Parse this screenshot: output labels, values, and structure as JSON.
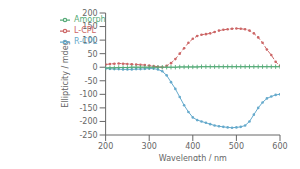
{
  "chart_data": {
    "type": "line",
    "xlabel": "Wavelength / nm",
    "ylabel": "Ellipticity / mdeg",
    "x": [
      200,
      210,
      220,
      230,
      240,
      250,
      260,
      270,
      280,
      290,
      300,
      310,
      320,
      330,
      340,
      350,
      360,
      370,
      380,
      390,
      400,
      410,
      420,
      430,
      440,
      450,
      460,
      470,
      480,
      490,
      500,
      510,
      520,
      530,
      540,
      550,
      560,
      570,
      580,
      590,
      600
    ],
    "xlim": [
      200,
      600
    ],
    "ylim": [
      -250,
      200
    ],
    "xticks": [
      200,
      300,
      400,
      500,
      600
    ],
    "yticks": [
      -250,
      -200,
      -150,
      -100,
      -50,
      0,
      50,
      100,
      150,
      200
    ],
    "legend": "upper left",
    "series": [
      {
        "name": "L-CPL",
        "color": "#cc6666",
        "marker": "dot",
        "line_style": "dashed",
        "values": [
          10,
          12,
          13,
          14,
          13,
          12,
          11,
          10,
          9,
          8,
          6,
          4,
          2,
          0,
          5,
          15,
          30,
          50,
          70,
          90,
          105,
          115,
          120,
          122,
          125,
          130,
          135,
          138,
          140,
          142,
          143,
          142,
          140,
          135,
          125,
          110,
          90,
          65,
          45,
          20,
          5
        ]
      },
      {
        "name": "R-CPL",
        "color": "#66aacc",
        "marker": "dot",
        "line_style": "solid",
        "values": [
          -5,
          -6,
          -7,
          -7,
          -8,
          -8,
          -8,
          -7,
          -7,
          -6,
          -5,
          -5,
          -8,
          -15,
          -30,
          -55,
          -80,
          -110,
          -140,
          -165,
          -185,
          -195,
          -200,
          -205,
          -210,
          -215,
          -218,
          -220,
          -222,
          -223,
          -222,
          -220,
          -215,
          -200,
          -175,
          -150,
          -130,
          -115,
          -108,
          -102,
          -100
        ]
      },
      {
        "name": "Amorph",
        "color": "#55aa77",
        "marker": "plus",
        "line_style": "solid",
        "values": [
          -3,
          -2,
          -2,
          -1,
          -1,
          -1,
          0,
          0,
          0,
          0,
          0,
          0,
          0,
          0,
          0,
          0,
          0,
          1,
          1,
          1,
          1,
          1,
          2,
          2,
          2,
          2,
          2,
          2,
          2,
          2,
          2,
          2,
          2,
          2,
          2,
          2,
          2,
          2,
          2,
          2,
          2
        ]
      }
    ]
  }
}
